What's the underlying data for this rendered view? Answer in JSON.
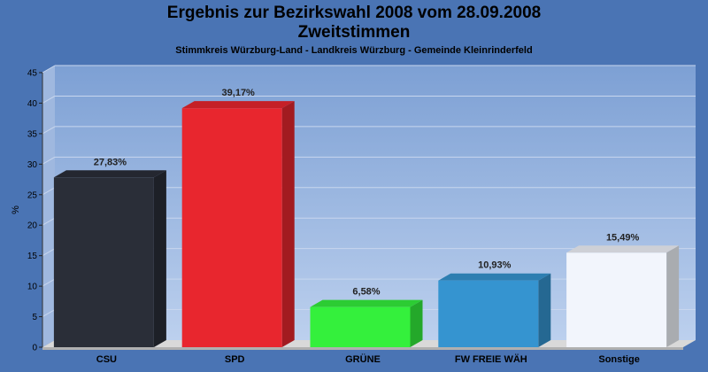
{
  "chart_data": {
    "type": "bar",
    "title": "Ergebnis zur Bezirkswahl 2008 vom 28.09.2008",
    "subtitle": "Zweitstimmen",
    "subtitle2": "Stimmkreis Würzburg-Land - Landkreis Würzburg - Gemeinde Kleinrinderfeld",
    "ylabel": "%",
    "ylim": [
      0,
      45
    ],
    "yticks": [
      0,
      5,
      10,
      15,
      20,
      25,
      30,
      35,
      40,
      45
    ],
    "categories": [
      "CSU",
      "SPD",
      "GRÜNE",
      "FW FREIE WÄH",
      "Sonstige"
    ],
    "values": [
      27.83,
      39.17,
      6.58,
      10.93,
      15.49
    ],
    "labels": [
      "27,83%",
      "39,17%",
      "6,58%",
      "10,93%",
      "15,49%"
    ],
    "colors": [
      "#2a2e38",
      "#e8262e",
      "#34f03c",
      "#3594d0",
      "#f2f5fc"
    ],
    "grid": true,
    "legend": "none"
  }
}
